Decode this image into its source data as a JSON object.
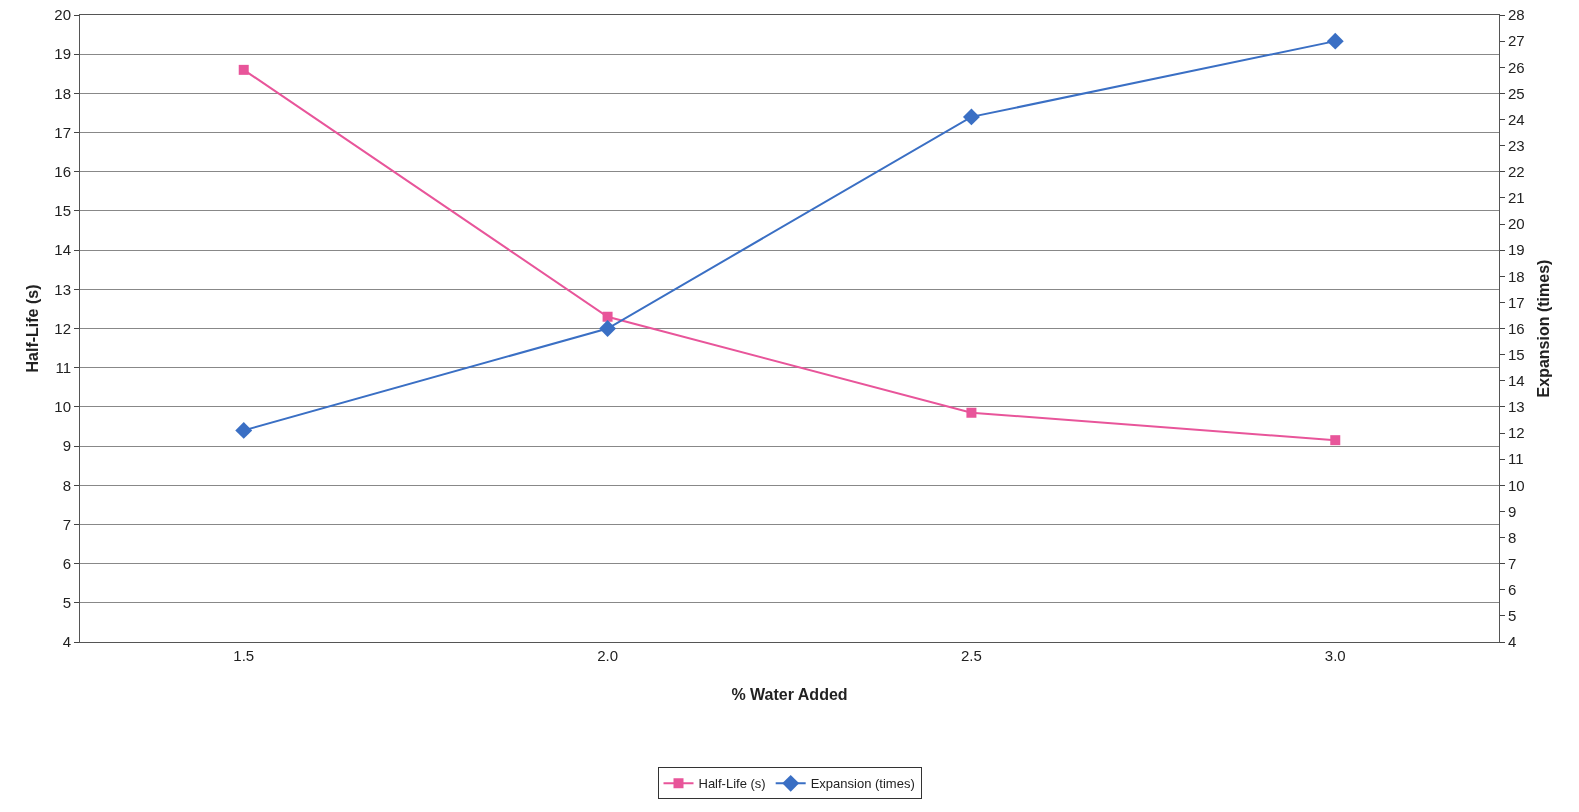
{
  "chart_data": {
    "type": "line",
    "xlabel": "% Water Added",
    "ylabel": "Half-Life (s)",
    "y2label": "Expansion (times)",
    "categories": [
      "1.5",
      "2.0",
      "2.5",
      "3.0"
    ],
    "series": [
      {
        "name": "Half-Life (s)",
        "color": "#e8559a",
        "marker": "square",
        "values": [
          18.6,
          12.3,
          9.85,
          9.15
        ]
      },
      {
        "name": "Expansion (times)",
        "color": "#3a6fc4",
        "marker": "diamond",
        "axis": "y2",
        "values": [
          12.1,
          16.0,
          24.1,
          27.0
        ]
      }
    ],
    "ylim": [
      4,
      20
    ],
    "yticks": [
      4,
      5,
      6,
      7,
      8,
      9,
      10,
      11,
      12,
      13,
      14,
      15,
      16,
      17,
      18,
      19,
      20
    ],
    "y2lim": [
      4,
      28
    ],
    "y2ticks": [
      4,
      5,
      6,
      7,
      8,
      9,
      10,
      11,
      12,
      13,
      14,
      15,
      16,
      17,
      18,
      19,
      20,
      21,
      22,
      23,
      24,
      25,
      26,
      27,
      28
    ],
    "grid": "y",
    "legend": "bottom",
    "line_style": "solid"
  }
}
